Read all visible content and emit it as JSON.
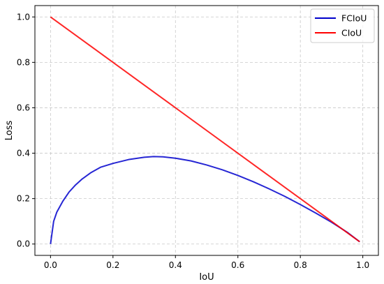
{
  "chart_data": {
    "type": "line",
    "title": "",
    "xlabel": "IoU",
    "ylabel": "Loss",
    "xlim": [
      -0.05,
      1.05
    ],
    "ylim": [
      -0.05,
      1.05
    ],
    "xticks": [
      "0.0",
      "0.2",
      "0.4",
      "0.6",
      "0.8",
      "1.0"
    ],
    "yticks": [
      "0.0",
      "0.2",
      "0.4",
      "0.6",
      "0.8",
      "1.0"
    ],
    "grid": true,
    "grid_style": "dashed",
    "legend_position": "top-right",
    "series": [
      {
        "name": "FCIoU",
        "color": "#0000cc",
        "x": [
          0.0,
          0.01,
          0.02,
          0.04,
          0.06,
          0.08,
          0.1,
          0.13,
          0.16,
          0.2,
          0.25,
          0.3,
          0.33,
          0.36,
          0.4,
          0.45,
          0.5,
          0.55,
          0.6,
          0.65,
          0.7,
          0.75,
          0.8,
          0.85,
          0.9,
          0.95,
          0.99
        ],
        "y": [
          0.0,
          0.1,
          0.14,
          0.19,
          0.23,
          0.26,
          0.285,
          0.315,
          0.338,
          0.355,
          0.372,
          0.382,
          0.385,
          0.384,
          0.378,
          0.366,
          0.348,
          0.327,
          0.302,
          0.274,
          0.243,
          0.21,
          0.174,
          0.136,
          0.096,
          0.052,
          0.01
        ]
      },
      {
        "name": "CIoU",
        "color": "#ff0000",
        "x": [
          0.0,
          0.99
        ],
        "y": [
          1.0,
          0.01
        ]
      }
    ]
  }
}
